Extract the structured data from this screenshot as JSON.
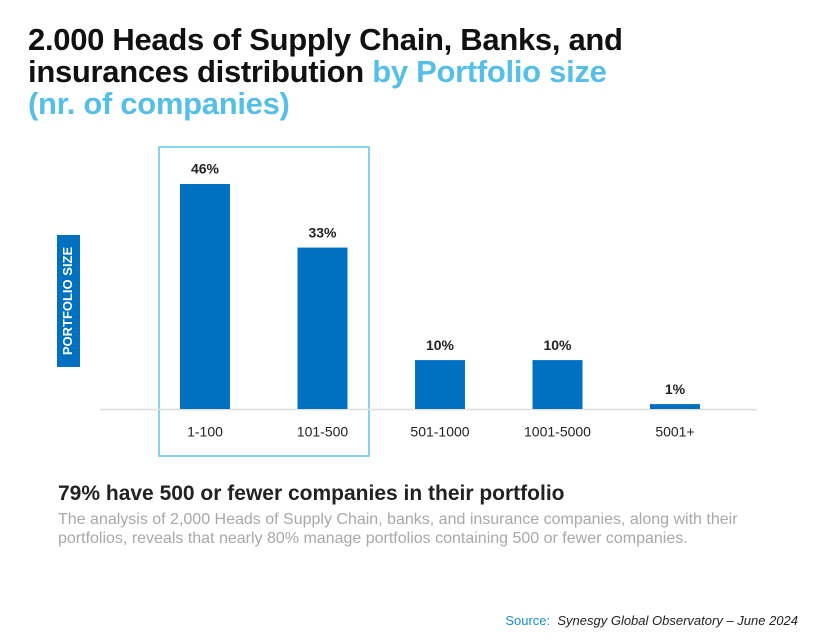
{
  "chart_data": {
    "type": "bar",
    "title": [
      "2.000 Heads of Supply Chain, Banks, and insurances distribution",
      "by Portfolio size (nr. of companies)"
    ],
    "y_label": "PORTFOLIO SIZE",
    "categories": [
      "1-100",
      "101-500",
      "501-1000",
      "1001-5000",
      "5001+"
    ],
    "values": [
      46,
      33,
      10,
      10,
      1
    ],
    "value_labels": [
      "46%",
      "33%",
      "10%",
      "10%",
      "1%"
    ],
    "color": "#0070c0",
    "headline": "79% have 500 or fewer companies in their portfolio",
    "description": "The analysis of 2,000 Heads of Supply Chain, banks, and insurance companies, along with their portfolios, reveals that nearly 80% manage portfolios containing 500 or fewer companies.",
    "source_label": "Source:",
    "source": "Synesgy Global Observatory – June 2024"
  }
}
